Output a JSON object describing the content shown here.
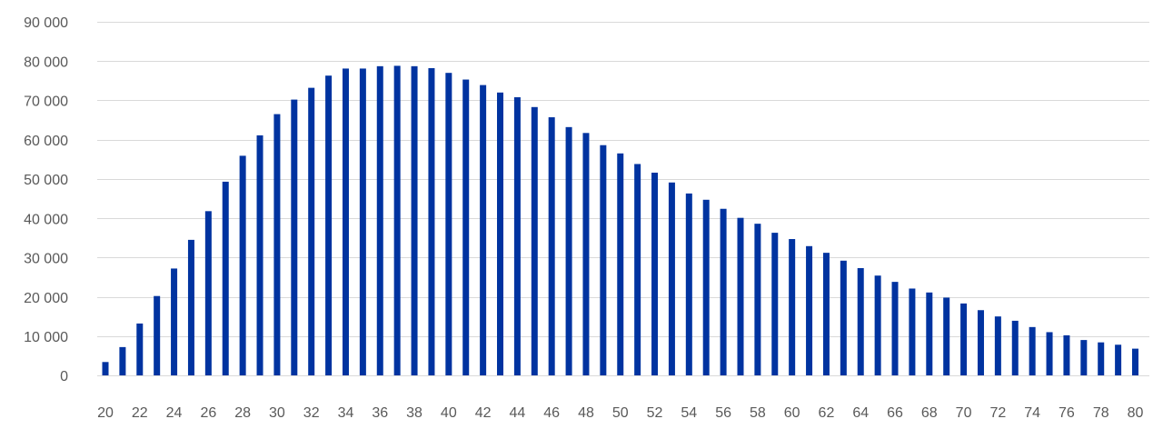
{
  "colors": {
    "bar": "#0033a0",
    "grid": "#d9d9d9",
    "text": "#595959"
  },
  "chart_data": {
    "type": "bar",
    "title": "",
    "xlabel": "",
    "ylabel": "",
    "ylim": [
      0,
      90000
    ],
    "grid": true,
    "legend": "none",
    "y_ticks": [
      "0",
      "10 000",
      "20 000",
      "30 000",
      "40 000",
      "50 000",
      "60 000",
      "70 000",
      "80 000",
      "90 000"
    ],
    "y_tick_values": [
      0,
      10000,
      20000,
      30000,
      40000,
      50000,
      60000,
      70000,
      80000,
      90000
    ],
    "x_tick_labels": [
      "20",
      "22",
      "24",
      "26",
      "28",
      "30",
      "32",
      "34",
      "36",
      "38",
      "40",
      "42",
      "44",
      "46",
      "48",
      "50",
      "52",
      "54",
      "56",
      "58",
      "60",
      "62",
      "64",
      "66",
      "68",
      "70",
      "72",
      "74",
      "76",
      "78",
      "80"
    ],
    "categories": [
      20,
      21,
      22,
      23,
      24,
      25,
      26,
      27,
      28,
      29,
      30,
      31,
      32,
      33,
      34,
      35,
      36,
      37,
      38,
      39,
      40,
      41,
      42,
      43,
      44,
      45,
      46,
      47,
      48,
      49,
      50,
      51,
      52,
      53,
      54,
      55,
      56,
      57,
      58,
      59,
      60,
      61,
      62,
      63,
      64,
      65,
      66,
      67,
      68,
      69,
      70,
      71,
      72,
      73,
      74,
      75,
      76,
      77,
      78,
      79,
      80
    ],
    "values": [
      3400,
      7200,
      13200,
      20200,
      27200,
      34500,
      41800,
      49300,
      55900,
      61100,
      66500,
      70200,
      73200,
      76300,
      78100,
      78100,
      78700,
      78800,
      78700,
      78200,
      77000,
      75300,
      73900,
      72000,
      70800,
      68300,
      65700,
      63200,
      61700,
      58600,
      56500,
      53800,
      51600,
      49100,
      46300,
      44700,
      42400,
      40100,
      38600,
      36300,
      34700,
      32900,
      31200,
      29200,
      27300,
      25400,
      23800,
      22100,
      21100,
      19800,
      18300,
      16600,
      15000,
      13900,
      12300,
      11000,
      10200,
      9000,
      8400,
      7800,
      6800
    ]
  }
}
